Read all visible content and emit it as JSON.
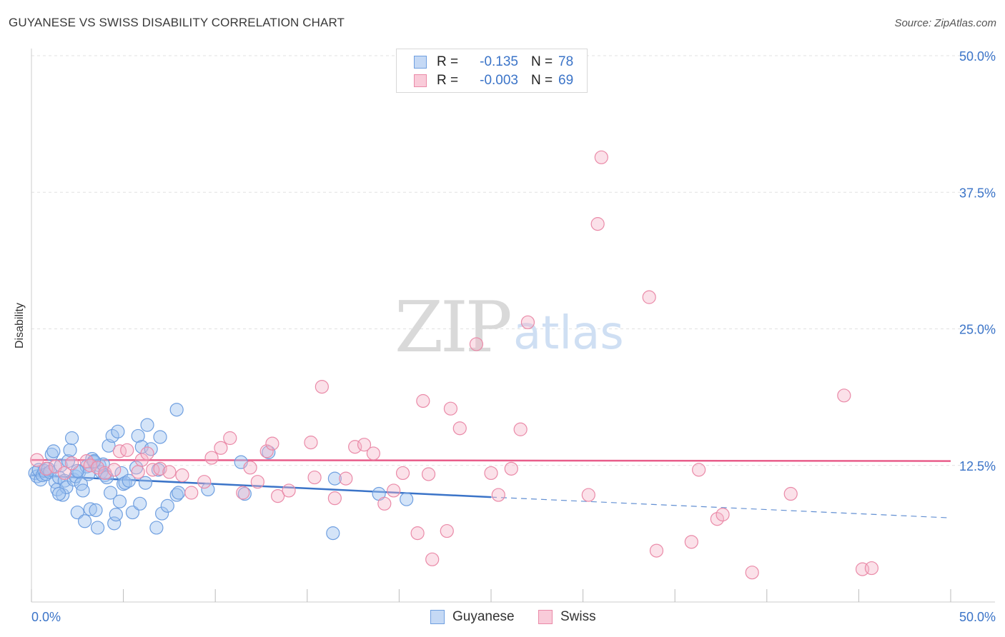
{
  "title": "GUYANESE VS SWISS DISABILITY CORRELATION CHART",
  "source": "Source: ZipAtlas.com",
  "watermark": {
    "zip": "ZIP",
    "atlas": "atlas"
  },
  "legend": {
    "rows": [
      {
        "swatch_fill": "#c5d9f5",
        "swatch_border": "#6f9fe0",
        "r_label": "R =",
        "r_value": "-0.135",
        "n_label": "N =",
        "n_value": "78"
      },
      {
        "swatch_fill": "#f9cbd9",
        "swatch_border": "#ea8aa8",
        "r_label": "R =",
        "r_value": "-0.003",
        "n_label": "N =",
        "n_value": "69"
      }
    ]
  },
  "bottom_legend": [
    {
      "label": "Guyanese",
      "swatch_fill": "#c5d9f5",
      "swatch_border": "#6f9fe0"
    },
    {
      "label": "Swiss",
      "swatch_fill": "#f9cbd9",
      "swatch_border": "#ea8aa8"
    }
  ],
  "chart_data": {
    "type": "scatter",
    "title": "GUYANESE VS SWISS DISABILITY CORRELATION CHART",
    "xlabel": "",
    "ylabel": "Disability",
    "xlim": [
      0,
      50
    ],
    "ylim": [
      0,
      50
    ],
    "x_tick_labels": [
      "0.0%",
      "50.0%"
    ],
    "y_ticks": [
      12.5,
      25.0,
      37.5,
      50.0
    ],
    "y_tick_labels": [
      "12.5%",
      "25.0%",
      "37.5%",
      "50.0%"
    ],
    "grid": true,
    "colors": {
      "guyanese": "#3b74c8",
      "swiss": "#e85d8a",
      "axis_label": "#3b74c8"
    },
    "series": [
      {
        "name": "Guyanese",
        "color": "#3b74c8",
        "fill": "rgba(160,195,240,0.45)",
        "stroke": "#6f9fe0",
        "trend": {
          "x0": 0,
          "y0": 11.6,
          "x1": 25,
          "y1": 9.6,
          "dash_to_x": 50,
          "dash_to_y": 7.7
        },
        "points": [
          [
            0.2,
            11.8
          ],
          [
            0.3,
            11.5
          ],
          [
            0.4,
            12.1
          ],
          [
            0.5,
            11.2
          ],
          [
            0.6,
            11.6
          ],
          [
            0.7,
            12.0
          ],
          [
            0.8,
            11.7
          ],
          [
            0.9,
            12.2
          ],
          [
            1.0,
            11.9
          ],
          [
            1.1,
            13.5
          ],
          [
            1.2,
            13.8
          ],
          [
            1.3,
            11.0
          ],
          [
            1.4,
            10.3
          ],
          [
            1.5,
            11.4
          ],
          [
            1.6,
            12.5
          ],
          [
            1.7,
            9.8
          ],
          [
            1.8,
            11.1
          ],
          [
            1.9,
            10.5
          ],
          [
            2.0,
            12.9
          ],
          [
            2.1,
            13.9
          ],
          [
            2.2,
            15.0
          ],
          [
            2.3,
            11.2
          ],
          [
            2.4,
            11.5
          ],
          [
            2.5,
            8.2
          ],
          [
            2.6,
            11.9
          ],
          [
            2.7,
            10.8
          ],
          [
            2.8,
            10.2
          ],
          [
            2.9,
            7.4
          ],
          [
            3.0,
            12.4
          ],
          [
            3.1,
            11.7
          ],
          [
            3.2,
            8.5
          ],
          [
            3.3,
            13.1
          ],
          [
            3.4,
            12.8
          ],
          [
            3.5,
            8.4
          ],
          [
            3.6,
            6.8
          ],
          [
            3.7,
            12.5
          ],
          [
            3.8,
            11.9
          ],
          [
            3.9,
            12.6
          ],
          [
            4.0,
            11.6
          ],
          [
            4.1,
            11.4
          ],
          [
            4.2,
            14.3
          ],
          [
            4.3,
            10.0
          ],
          [
            4.4,
            15.2
          ],
          [
            4.5,
            7.2
          ],
          [
            4.6,
            8.0
          ],
          [
            4.7,
            15.6
          ],
          [
            4.8,
            9.2
          ],
          [
            4.9,
            11.8
          ],
          [
            5.0,
            10.8
          ],
          [
            5.1,
            10.9
          ],
          [
            5.3,
            11.1
          ],
          [
            5.5,
            8.2
          ],
          [
            5.7,
            12.3
          ],
          [
            5.8,
            15.2
          ],
          [
            5.9,
            9.0
          ],
          [
            6.0,
            14.2
          ],
          [
            6.2,
            10.9
          ],
          [
            6.3,
            16.2
          ],
          [
            6.5,
            14.0
          ],
          [
            6.8,
            6.8
          ],
          [
            6.9,
            12.1
          ],
          [
            7.0,
            15.1
          ],
          [
            7.1,
            8.1
          ],
          [
            7.4,
            8.8
          ],
          [
            7.9,
            17.6
          ],
          [
            7.9,
            9.8
          ],
          [
            8.0,
            10.0
          ],
          [
            9.6,
            10.3
          ],
          [
            11.4,
            12.8
          ],
          [
            11.6,
            9.9
          ],
          [
            12.9,
            13.7
          ],
          [
            16.4,
            6.3
          ],
          [
            16.5,
            11.3
          ],
          [
            18.9,
            9.9
          ],
          [
            20.4,
            9.4
          ],
          [
            1.5,
            9.9
          ],
          [
            2.5,
            12.0
          ],
          [
            3.4,
            12.9
          ]
        ]
      },
      {
        "name": "Swiss",
        "color": "#e85d8a",
        "fill": "rgba(245,180,200,0.40)",
        "stroke": "#ea8aa8",
        "trend": {
          "x0": 0,
          "y0": 13.0,
          "x1": 50,
          "y1": 12.9
        },
        "points": [
          [
            0.3,
            13.0
          ],
          [
            0.8,
            12.2
          ],
          [
            1.3,
            12.4
          ],
          [
            1.8,
            11.8
          ],
          [
            2.2,
            12.7
          ],
          [
            3.0,
            12.9
          ],
          [
            3.2,
            12.5
          ],
          [
            3.6,
            12.3
          ],
          [
            4.0,
            11.8
          ],
          [
            4.5,
            12.1
          ],
          [
            4.8,
            13.8
          ],
          [
            5.2,
            13.9
          ],
          [
            5.8,
            11.9
          ],
          [
            6.0,
            13.0
          ],
          [
            6.3,
            13.6
          ],
          [
            6.6,
            12.1
          ],
          [
            7.0,
            12.2
          ],
          [
            7.5,
            11.9
          ],
          [
            8.2,
            11.6
          ],
          [
            8.7,
            10.0
          ],
          [
            9.4,
            11.0
          ],
          [
            9.8,
            13.2
          ],
          [
            10.3,
            14.1
          ],
          [
            10.8,
            15.0
          ],
          [
            11.5,
            10.0
          ],
          [
            11.9,
            12.3
          ],
          [
            12.3,
            11.0
          ],
          [
            12.8,
            13.8
          ],
          [
            13.1,
            14.5
          ],
          [
            13.4,
            9.7
          ],
          [
            14.0,
            10.2
          ],
          [
            15.2,
            14.6
          ],
          [
            15.4,
            11.4
          ],
          [
            15.8,
            19.7
          ],
          [
            16.5,
            9.5
          ],
          [
            17.1,
            11.3
          ],
          [
            17.6,
            14.2
          ],
          [
            18.1,
            14.4
          ],
          [
            18.6,
            13.6
          ],
          [
            19.2,
            9.0
          ],
          [
            19.7,
            10.2
          ],
          [
            20.2,
            11.8
          ],
          [
            21.0,
            6.3
          ],
          [
            21.3,
            18.4
          ],
          [
            21.6,
            11.7
          ],
          [
            21.8,
            3.9
          ],
          [
            22.6,
            6.5
          ],
          [
            22.8,
            17.7
          ],
          [
            23.3,
            15.9
          ],
          [
            24.2,
            23.6
          ],
          [
            25.0,
            11.8
          ],
          [
            25.4,
            9.8
          ],
          [
            26.1,
            12.2
          ],
          [
            26.6,
            15.8
          ],
          [
            27.0,
            25.6
          ],
          [
            30.3,
            9.8
          ],
          [
            30.8,
            34.6
          ],
          [
            31.0,
            40.7
          ],
          [
            33.6,
            27.9
          ],
          [
            34.0,
            4.7
          ],
          [
            35.9,
            5.5
          ],
          [
            36.3,
            12.1
          ],
          [
            37.3,
            7.6
          ],
          [
            37.6,
            8.0
          ],
          [
            39.2,
            2.7
          ],
          [
            41.3,
            9.9
          ],
          [
            44.2,
            18.9
          ],
          [
            45.2,
            3.0
          ],
          [
            45.7,
            3.1
          ]
        ]
      }
    ]
  }
}
